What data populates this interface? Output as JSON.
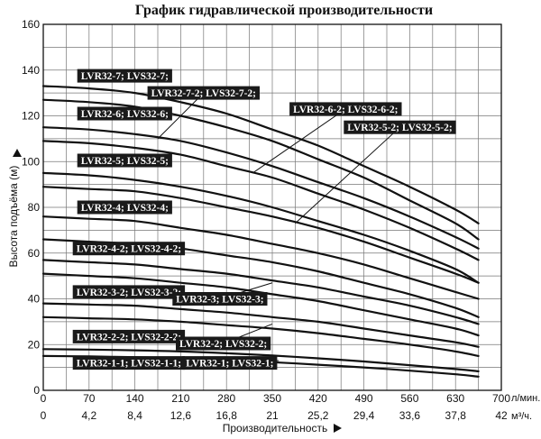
{
  "chart_data": {
    "type": "line",
    "title": "График гидравлической производительности",
    "xlabel": "Производительность",
    "ylabel": "Высота подъёма (м)",
    "x_unit": "л/мин.",
    "x2_unit": "м³/ч.",
    "xlim": [
      0,
      700
    ],
    "ylim": [
      0,
      160
    ],
    "xticks": [
      0,
      70,
      140,
      210,
      280,
      350,
      420,
      490,
      560,
      630,
      700
    ],
    "xticks2": [
      "0",
      "4,2",
      "8,4",
      "12,6",
      "16,8",
      "21",
      "25,2",
      "29,4",
      "33,6",
      "37,8",
      "42"
    ],
    "yticks": [
      0,
      20,
      40,
      60,
      80,
      100,
      120,
      140,
      160
    ],
    "grid": true,
    "x": [
      0,
      70,
      140,
      210,
      280,
      350,
      420,
      490,
      560,
      630,
      665
    ],
    "series": [
      {
        "name": "LVR32-7; LVS32-7;",
        "values": [
          133,
          132,
          130,
          126,
          121,
          114,
          107,
          98,
          89,
          79,
          73
        ]
      },
      {
        "name": "LVR32-7-2; LVS32-7-2;",
        "values": [
          127,
          126,
          124,
          120,
          115,
          109,
          101,
          93,
          83,
          73,
          66
        ]
      },
      {
        "name": "LVR32-6; LVS32-6;",
        "values": [
          115,
          114,
          112,
          109,
          104,
          98,
          91,
          84,
          76,
          67,
          62
        ]
      },
      {
        "name": "LVR32-6-2; LVS32-6-2;",
        "values": [
          109,
          108,
          106,
          103,
          98,
          93,
          86,
          79,
          71,
          62,
          57
        ]
      },
      {
        "name": "LVR32-5-2; LVS32-5-2;",
        "values": [
          95,
          94,
          92,
          89,
          85,
          80,
          74,
          68,
          61,
          53,
          47
        ]
      },
      {
        "name": "LVR32-5; LVS32-5;",
        "values": [
          89,
          88,
          87,
          84,
          80,
          76,
          71,
          65,
          58,
          51,
          47
        ]
      },
      {
        "name": "LVR32-4; LVS32-4;",
        "values": [
          76,
          75,
          74,
          71,
          68,
          64,
          60,
          55,
          49,
          43,
          40
        ]
      },
      {
        "name": "LVR32-4-2; LVS32-4-2;",
        "values": [
          66,
          65,
          64,
          62,
          59,
          56,
          52,
          47,
          42,
          36,
          32
        ]
      },
      {
        "name": "LVR32-3; LVS32-3;",
        "values": [
          57,
          56,
          55,
          53,
          51,
          48,
          45,
          41,
          37,
          32,
          29
        ]
      },
      {
        "name": "LVR32-3-2; LVS32-3-2;",
        "values": [
          51,
          50,
          49,
          47,
          45,
          42,
          39,
          35,
          31,
          27,
          24
        ]
      },
      {
        "name": "LVR32-2; LVS32-2;",
        "values": [
          38,
          37.5,
          37,
          35.5,
          34,
          32,
          30,
          27,
          24,
          21,
          19
        ]
      },
      {
        "name": "LVR32-2-2; LVS32-2-2;",
        "values": [
          32,
          31.5,
          31,
          30,
          28.5,
          27,
          25,
          22.5,
          20,
          17,
          15
        ]
      },
      {
        "name": "LVR32-1-1; LVS32-1-1;",
        "values": [
          18,
          17.8,
          17.5,
          17,
          16.2,
          15.2,
          14,
          12.6,
          11,
          9.3,
          8.3
        ]
      },
      {
        "name": "LVR32-1; LVS32-1;",
        "values": [
          15,
          14.8,
          14.5,
          14,
          13.2,
          12.3,
          11.2,
          10,
          8.6,
          7,
          6
        ]
      }
    ],
    "labels": [
      {
        "text": "LVR32-7; LVS32-7;",
        "lx": 52,
        "ly": 137.5,
        "anchor": "left",
        "leader": null
      },
      {
        "text": "LVR32-7-2; LVS32-7-2;",
        "lx": 245,
        "ly": 130,
        "anchor": "center",
        "leader": [
          [
            245,
            130
          ],
          [
            175,
            110
          ]
        ]
      },
      {
        "text": "LVR32-6; LVS32-6;",
        "lx": 52,
        "ly": 121,
        "anchor": "left",
        "leader": null
      },
      {
        "text": "LVR32-6-2; LVS32-6-2;",
        "lx": 462,
        "ly": 123,
        "anchor": "center",
        "leader": [
          [
            462,
            123
          ],
          [
            320,
            95
          ]
        ]
      },
      {
        "text": "LVR32-5-2; LVS32-5-2;",
        "lx": 545,
        "ly": 115,
        "anchor": "center",
        "leader": [
          [
            545,
            115
          ],
          [
            385,
            73
          ]
        ]
      },
      {
        "text": "LVR32-5; LVS32-5;",
        "lx": 52,
        "ly": 100.5,
        "anchor": "left",
        "leader": null
      },
      {
        "text": "LVR32-4; LVS32-4;",
        "lx": 52,
        "ly": 80,
        "anchor": "left",
        "leader": null
      },
      {
        "text": "LVR32-4-2; LVS32-4-2;",
        "lx": 45,
        "ly": 62,
        "anchor": "left",
        "leader": null
      },
      {
        "text": "LVR32-3-2; LVS32-3-2;",
        "lx": 45,
        "ly": 43,
        "anchor": "left",
        "leader": null
      },
      {
        "text": "LVR32-3; LVS32-3;",
        "lx": 270,
        "ly": 40,
        "anchor": "center",
        "leader": [
          [
            270,
            40
          ],
          [
            350,
            47
          ]
        ]
      },
      {
        "text": "LVR32-2-2; LVS32-2-2;",
        "lx": 45,
        "ly": 23.5,
        "anchor": "left",
        "leader": null
      },
      {
        "text": "LVR32-2; LVS32-2;",
        "lx": 275,
        "ly": 20.5,
        "anchor": "center",
        "leader": [
          [
            275,
            20.5
          ],
          [
            350,
            29
          ]
        ]
      },
      {
        "text": "LVR32-1-1; LVS32-1-1;",
        "lx": 45,
        "ly": 12,
        "anchor": "left",
        "leader": null
      },
      {
        "text": "LVR32-1; LVS32-1;",
        "lx": 285,
        "ly": 12,
        "anchor": "center",
        "leader": [
          [
            285,
            12
          ],
          [
            360,
            13
          ]
        ]
      }
    ]
  }
}
